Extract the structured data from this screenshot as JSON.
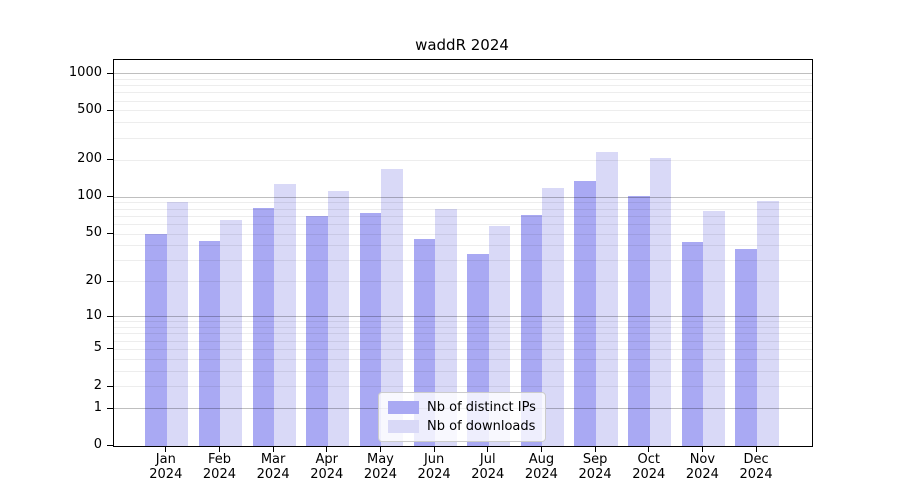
{
  "title": "waddR 2024",
  "colors": {
    "distinct_ips_bar": "#a9a9f3",
    "downloads_bar": "#d9d9f7",
    "axis": "#000000",
    "legend_border": "#cccccc"
  },
  "legend": {
    "items": [
      {
        "label": "Nb of distinct IPs",
        "color": "#a9a9f3"
      },
      {
        "label": "Nb of downloads",
        "color": "#d9d9f7"
      }
    ]
  },
  "chart_data": {
    "type": "bar",
    "title": "waddR 2024",
    "categories": [
      "Jan 2024",
      "Feb 2024",
      "Mar 2024",
      "Apr 2024",
      "May 2024",
      "Jun 2024",
      "Jul 2024",
      "Aug 2024",
      "Sep 2024",
      "Oct 2024",
      "Nov 2024",
      "Dec 2024"
    ],
    "series": [
      {
        "name": "Nb of distinct IPs",
        "color": "#a9a9f3",
        "values": [
          50,
          44,
          82,
          70,
          75,
          46,
          34,
          72,
          135,
          103,
          43,
          38
        ]
      },
      {
        "name": "Nb of downloads",
        "color": "#d9d9f7",
        "values": [
          92,
          65,
          128,
          113,
          170,
          81,
          58,
          120,
          235,
          207,
          77,
          94
        ]
      }
    ],
    "xlabel": "",
    "ylabel": "",
    "yscale": "log1p",
    "y_ticks": [
      0,
      1,
      2,
      5,
      10,
      20,
      50,
      100,
      200,
      500,
      1000
    ],
    "ylim": [
      0,
      1000
    ],
    "grid": true,
    "legend_position": "bottom-center"
  }
}
